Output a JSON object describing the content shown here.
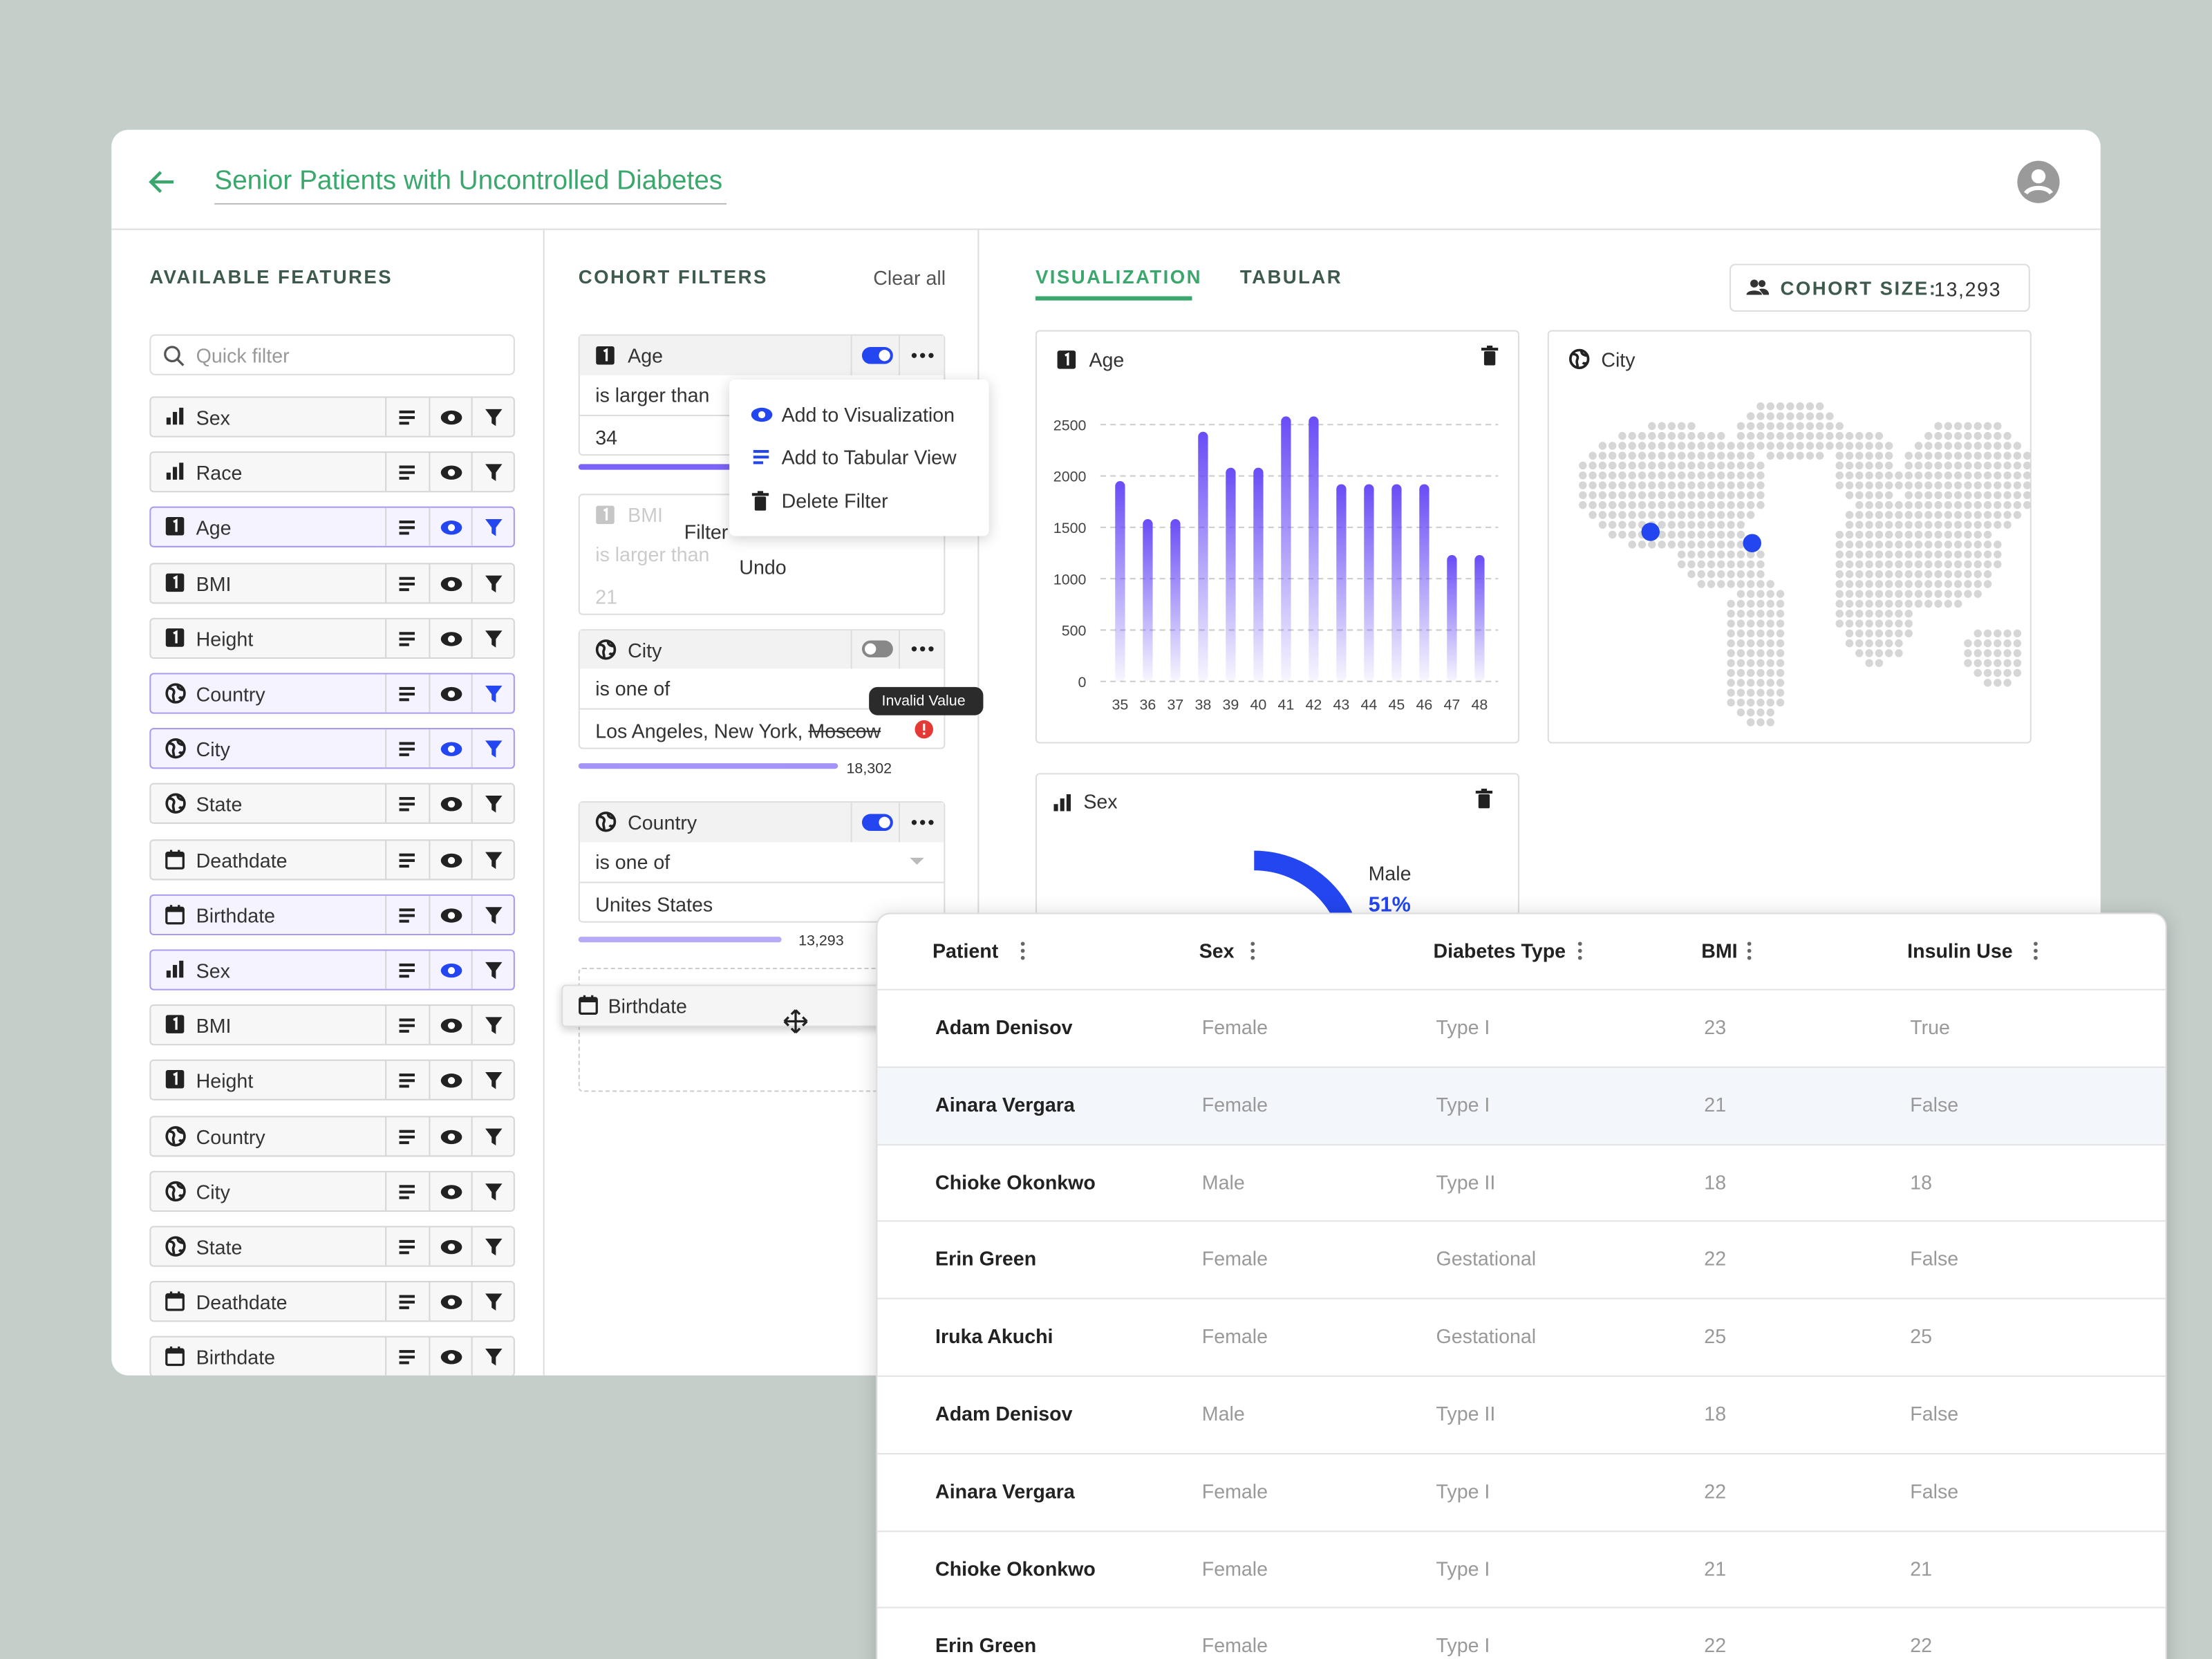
{
  "header": {
    "title": "Senior Patients with Uncontrolled Diabetes"
  },
  "features": {
    "title": "AVAILABLE FEATURES",
    "search_placeholder": "Quick filter",
    "items": [
      {
        "name": "Sex",
        "icon": "bar",
        "highlighted": false,
        "eye_active": false,
        "filter_active": false
      },
      {
        "name": "Race",
        "icon": "bar",
        "highlighted": false,
        "eye_active": false,
        "filter_active": false
      },
      {
        "name": "Age",
        "icon": "num",
        "highlighted": true,
        "eye_active": true,
        "filter_active": true
      },
      {
        "name": "BMI",
        "icon": "num",
        "highlighted": false,
        "eye_active": false,
        "filter_active": false
      },
      {
        "name": "Height",
        "icon": "num",
        "highlighted": false,
        "eye_active": false,
        "filter_active": false
      },
      {
        "name": "Country",
        "icon": "globe",
        "highlighted": true,
        "eye_active": false,
        "filter_active": true
      },
      {
        "name": "City",
        "icon": "globe",
        "highlighted": true,
        "eye_active": true,
        "filter_active": true
      },
      {
        "name": "State",
        "icon": "globe",
        "highlighted": false,
        "eye_active": false,
        "filter_active": false
      },
      {
        "name": "Deathdate",
        "icon": "cal",
        "highlighted": false,
        "eye_active": false,
        "filter_active": false
      },
      {
        "name": "Birthdate",
        "icon": "cal",
        "highlighted": true,
        "eye_active": false,
        "filter_active": false
      },
      {
        "name": "Sex",
        "icon": "bar",
        "highlighted": true,
        "eye_active": true,
        "filter_active": false
      },
      {
        "name": "BMI",
        "icon": "num",
        "highlighted": false,
        "eye_active": false,
        "filter_active": false
      },
      {
        "name": "Height",
        "icon": "num",
        "highlighted": false,
        "eye_active": false,
        "filter_active": false
      },
      {
        "name": "Country",
        "icon": "globe",
        "highlighted": false,
        "eye_active": false,
        "filter_active": false
      },
      {
        "name": "City",
        "icon": "globe",
        "highlighted": false,
        "eye_active": false,
        "filter_active": false
      },
      {
        "name": "State",
        "icon": "globe",
        "highlighted": false,
        "eye_active": false,
        "filter_active": false
      },
      {
        "name": "Deathdate",
        "icon": "cal",
        "highlighted": false,
        "eye_active": false,
        "filter_active": false
      },
      {
        "name": "Birthdate",
        "icon": "cal",
        "highlighted": false,
        "eye_active": false,
        "filter_active": false
      }
    ]
  },
  "filters": {
    "title": "COHORT FILTERS",
    "clear": "Clear all",
    "age": {
      "name": "Age",
      "operator": "is larger than",
      "value": "34"
    },
    "bmi": {
      "name": "BMI",
      "operator": "is larger than",
      "value": "21",
      "toast": "Filter",
      "undo": "Undo"
    },
    "city": {
      "name": "City",
      "operator": "is one of",
      "value": "Los Angeles, New York,",
      "invalid_value": "Moscow",
      "tooltip": "Invalid Value",
      "count": "18,302"
    },
    "country": {
      "name": "Country",
      "operator": "is one of",
      "value": "Unites States",
      "count": "13,293"
    },
    "dragged": "Birthdate",
    "menu": [
      "Add to Visualization",
      "Add to Tabular View",
      "Delete Filter"
    ]
  },
  "tabs": [
    "VISUALIZATION",
    "TABULAR"
  ],
  "cohort": {
    "label": "COHORT SIZE:",
    "value": "13,293"
  },
  "map_title": "City",
  "chart_data": [
    {
      "type": "bar",
      "title": "Age",
      "categories": [
        "35",
        "36",
        "37",
        "38",
        "39",
        "40",
        "41",
        "42",
        "43",
        "44",
        "45",
        "46",
        "47",
        "48"
      ],
      "values": [
        1950,
        1580,
        1580,
        2430,
        2080,
        2080,
        2580,
        2580,
        1920,
        1920,
        1920,
        1920,
        1230,
        1230
      ],
      "color": "#6a4cf5",
      "ylim": [
        0,
        2600
      ],
      "yticks": [
        0,
        500,
        1000,
        1500,
        2000,
        2500
      ],
      "grid": true
    },
    {
      "type": "pie",
      "title": "Sex",
      "label": "Male",
      "values": [
        51
      ],
      "value_labels": [
        "51%"
      ],
      "color": "#2346f0"
    }
  ],
  "table": {
    "columns": [
      "Patient",
      "Sex",
      "Diabetes Type",
      "BMI",
      "Insulin Use"
    ],
    "rows": [
      [
        "Adam Denisov",
        "Female",
        "Type I",
        23,
        "True"
      ],
      [
        "Ainara Vergara",
        "Female",
        "Type I",
        21,
        "False"
      ],
      [
        "Chioke Okonkwo",
        "Male",
        "Type II",
        18,
        "18"
      ],
      [
        "Erin Green",
        "Female",
        "Gestational",
        22,
        "False"
      ],
      [
        "Iruka Akuchi",
        "Female",
        "Gestational",
        25,
        "25"
      ],
      [
        "Adam Denisov",
        "Male",
        "Type II",
        18,
        "False"
      ],
      [
        "Ainara Vergara",
        "Female",
        "Type I",
        22,
        "False"
      ],
      [
        "Chioke Okonkwo",
        "Female",
        "Type I",
        21,
        "21"
      ],
      [
        "Erin Green",
        "Female",
        "Type I",
        22,
        "22"
      ]
    ]
  }
}
